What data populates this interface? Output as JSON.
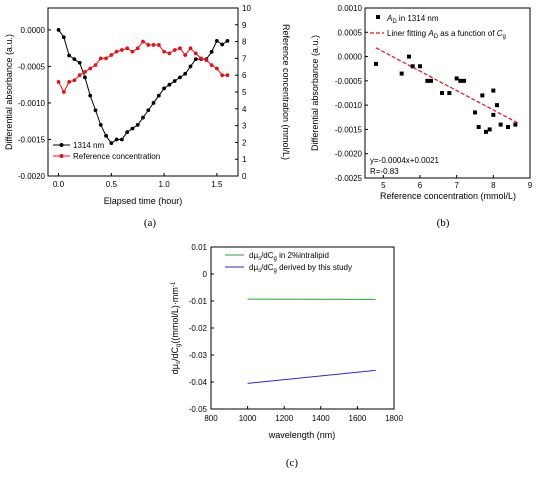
{
  "chart_data": [
    {
      "panel": "a",
      "type": "line",
      "caption": "(a)",
      "xlabel": "Elapsed time (hour)",
      "ylabel_left": "Differential absorbance (a.u.)",
      "ylabel_right": "Reference concentration (mmol/L)",
      "xlim": [
        -0.1,
        1.7
      ],
      "ylim_left": [
        -0.002,
        0.0003
      ],
      "ylim_right": [
        0,
        10
      ],
      "xticks": [
        "0.0",
        "0.5",
        "1.0",
        "1.5"
      ],
      "xtick_values": [
        0,
        0.5,
        1.0,
        1.5
      ],
      "yticks_left": [
        "0.0000",
        "-0.0005",
        "-0.0010",
        "-0.0015",
        "-0.0020"
      ],
      "ytick_left_values": [
        0,
        -0.0005,
        -0.001,
        -0.0015,
        -0.002
      ],
      "yticks_right": [
        "0",
        "1",
        "2",
        "3",
        "4",
        "5",
        "6",
        "7",
        "8",
        "9",
        "10"
      ],
      "ytick_right_values": [
        0,
        1,
        2,
        3,
        4,
        5,
        6,
        7,
        8,
        9,
        10
      ],
      "legend_position": "bottom-left",
      "series": [
        {
          "name": "1314 nm",
          "axis": "left",
          "color": "#000000",
          "x": [
            0,
            0.05,
            0.1,
            0.15,
            0.2,
            0.25,
            0.3,
            0.35,
            0.4,
            0.45,
            0.5,
            0.55,
            0.6,
            0.65,
            0.7,
            0.75,
            0.8,
            0.85,
            0.9,
            0.95,
            1.0,
            1.05,
            1.1,
            1.15,
            1.2,
            1.25,
            1.3,
            1.35,
            1.4,
            1.45,
            1.5,
            1.55,
            1.6
          ],
          "y": [
            0.0,
            -0.0001,
            -0.00035,
            -0.0004,
            -0.00045,
            -0.00065,
            -0.0009,
            -0.0011,
            -0.0013,
            -0.00145,
            -0.00155,
            -0.0015,
            -0.0015,
            -0.0014,
            -0.00135,
            -0.0013,
            -0.0012,
            -0.0011,
            -0.001,
            -0.0009,
            -0.0008,
            -0.00075,
            -0.0007,
            -0.00065,
            -0.0006,
            -0.0005,
            -0.0004,
            -0.0004,
            -0.0004,
            -0.0003,
            -0.00015,
            -0.0002,
            -0.00015
          ]
        },
        {
          "name": "Reference concentration",
          "axis": "right",
          "color": "#e8101a",
          "x": [
            0,
            0.05,
            0.1,
            0.15,
            0.2,
            0.25,
            0.3,
            0.35,
            0.4,
            0.45,
            0.5,
            0.55,
            0.6,
            0.65,
            0.7,
            0.75,
            0.8,
            0.85,
            0.9,
            0.95,
            1.0,
            1.05,
            1.1,
            1.15,
            1.2,
            1.25,
            1.3,
            1.35,
            1.4,
            1.45,
            1.5,
            1.55,
            1.6
          ],
          "y": [
            5.6,
            5.0,
            5.6,
            5.7,
            6.0,
            6.2,
            6.4,
            6.6,
            7.0,
            7.0,
            7.2,
            7.4,
            7.5,
            7.6,
            7.4,
            7.6,
            8.0,
            7.8,
            7.8,
            7.8,
            7.4,
            7.3,
            7.5,
            7.6,
            7.2,
            7.6,
            7.3,
            7.0,
            6.9,
            6.6,
            6.4,
            6.0,
            6.0
          ]
        }
      ]
    },
    {
      "panel": "b",
      "type": "scatter",
      "caption": "(b)",
      "xlabel": "Reference concentration (mmol/L)",
      "ylabel": "Differential absorbance (a.u.)",
      "xlim": [
        4.5,
        9
      ],
      "ylim": [
        -0.0025,
        0.001
      ],
      "xticks": [
        "5",
        "6",
        "7",
        "8",
        "9"
      ],
      "xtick_values": [
        5,
        6,
        7,
        8,
        9
      ],
      "yticks": [
        "0.0010",
        "0.0005",
        "0.0000",
        "-0.0005",
        "-0.0010",
        "-0.0015",
        "-0.0020",
        "-0.0025"
      ],
      "ytick_values": [
        0.001,
        0.0005,
        0,
        -0.0005,
        -0.001,
        -0.0015,
        -0.002,
        -0.0025
      ],
      "legend_position": "top-right",
      "legend": [
        {
          "label_main": "A",
          "label_sub": "D",
          "label_tail": " in 1314 nm"
        },
        {
          "label_main": "Liner fitting ",
          "label_it": "A",
          "label_sub": "D",
          "label_mid": " as a function of ",
          "label_it2": "C",
          "label_sub2": "g"
        }
      ],
      "annotation_eq": "y=-0.0004x+0.0021",
      "annotation_r": "R=-0.83",
      "points": {
        "x": [
          4.8,
          5.5,
          5.7,
          5.8,
          6.0,
          6.2,
          6.3,
          6.6,
          6.8,
          7.0,
          7.1,
          7.2,
          7.5,
          7.6,
          7.7,
          7.8,
          7.9,
          8.0,
          8.0,
          8.1,
          8.2,
          8.4,
          8.6
        ],
        "y": [
          -0.00015,
          -0.00035,
          0.0,
          -0.0002,
          -0.0002,
          -0.0005,
          -0.0005,
          -0.00075,
          -0.00075,
          -0.00045,
          -0.0005,
          -0.0005,
          -0.00115,
          -0.00145,
          -0.0008,
          -0.00155,
          -0.0015,
          -0.0007,
          -0.0012,
          -0.001,
          -0.0014,
          -0.00145,
          -0.0014
        ]
      },
      "fit": {
        "slope": -0.0004,
        "intercept": 0.0021,
        "x": [
          4.8,
          8.7
        ],
        "color": "#e8101a"
      }
    },
    {
      "panel": "c",
      "type": "line",
      "caption": "(c)",
      "xlabel": "wavelength (nm)",
      "ylabel": "dμs/dCg((mmol/L)·mm⁻¹",
      "xlim": [
        800,
        1800
      ],
      "ylim": [
        -0.05,
        0.01
      ],
      "xticks": [
        "800",
        "1000",
        "1200",
        "1400",
        "1600",
        "1800"
      ],
      "xtick_values": [
        800,
        1000,
        1200,
        1400,
        1600,
        1800
      ],
      "yticks": [
        "0.01",
        "0",
        "-0.01",
        "-0.02",
        "-0.03",
        "-0.04",
        "-0.05"
      ],
      "ytick_values": [
        0.01,
        0,
        -0.01,
        -0.02,
        -0.03,
        -0.04,
        -0.05
      ],
      "legend_position": "top-left",
      "series": [
        {
          "name": "dμs/dCg in 2%intralipid",
          "color": "#2ca02c",
          "x": [
            1000,
            1700
          ],
          "y": [
            -0.0093,
            -0.0094
          ]
        },
        {
          "name": "dμs/dCg derived by this study",
          "color": "#2a2ad0",
          "x": [
            1000,
            1700
          ],
          "y": [
            -0.0405,
            -0.0357
          ]
        }
      ]
    }
  ]
}
